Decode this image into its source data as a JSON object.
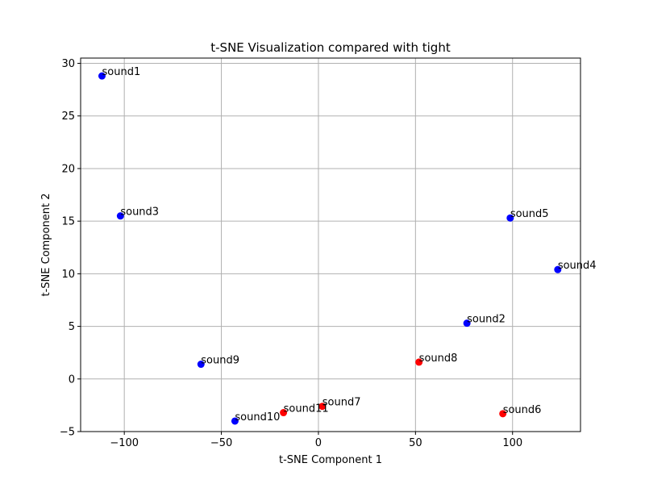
{
  "chart_data": {
    "type": "scatter",
    "title": "t-SNE Visualization compared with tight",
    "xlabel": "t-SNE Component 1",
    "ylabel": "t-SNE Component 2",
    "xlim": [
      -122.5,
      135
    ],
    "ylim": [
      -5.0,
      30.5
    ],
    "xticks": [
      -100,
      -50,
      0,
      50,
      100
    ],
    "xtick_labels": [
      "−100",
      "−50",
      "0",
      "50",
      "100"
    ],
    "yticks": [
      -5,
      0,
      5,
      10,
      15,
      20,
      25,
      30
    ],
    "ytick_labels": [
      "−5",
      "0",
      "5",
      "10",
      "15",
      "20",
      "25",
      "30"
    ],
    "grid": true,
    "legend": "none",
    "colors": {
      "blue": "#0000ff",
      "red": "#ff0000",
      "grid": "#b0b0b0"
    },
    "points": [
      {
        "label": "sound1",
        "x": -111.5,
        "y": 28.8,
        "color": "#0000ff"
      },
      {
        "label": "sound3",
        "x": -102.0,
        "y": 15.5,
        "color": "#0000ff"
      },
      {
        "label": "sound5",
        "x": 98.8,
        "y": 15.3,
        "color": "#0000ff"
      },
      {
        "label": "sound4",
        "x": 123.3,
        "y": 10.4,
        "color": "#0000ff"
      },
      {
        "label": "sound2",
        "x": 76.5,
        "y": 5.3,
        "color": "#0000ff"
      },
      {
        "label": "sound8",
        "x": 51.8,
        "y": 1.6,
        "color": "#ff0000"
      },
      {
        "label": "sound9",
        "x": -60.5,
        "y": 1.4,
        "color": "#0000ff"
      },
      {
        "label": "sound7",
        "x": 2.0,
        "y": -2.6,
        "color": "#ff0000"
      },
      {
        "label": "sound11",
        "x": -18.0,
        "y": -3.2,
        "color": "#ff0000"
      },
      {
        "label": "sound6",
        "x": 95.0,
        "y": -3.3,
        "color": "#ff0000"
      },
      {
        "label": "sound10",
        "x": -43.0,
        "y": -4.0,
        "color": "#0000ff"
      }
    ]
  }
}
